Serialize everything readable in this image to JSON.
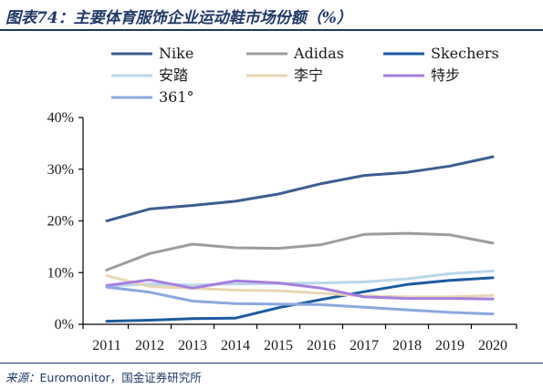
{
  "header": {
    "title": "图表74：主要体育服饰企业运动鞋市场份额（%）"
  },
  "footer": {
    "source_prefix": "来源：",
    "source_text": "Euromonitor，国金证券研究所"
  },
  "chart_data": {
    "type": "line",
    "title": "图表74：主要体育服饰企业运动鞋市场份额（%）",
    "xlabel": "",
    "ylabel": "",
    "x": [
      "2011",
      "2012",
      "2013",
      "2014",
      "2015",
      "2016",
      "2017",
      "2018",
      "2019",
      "2020"
    ],
    "ylim": [
      0,
      40
    ],
    "yticks": [
      "0%",
      "10%",
      "20%",
      "30%",
      "40%"
    ],
    "grid": false,
    "legend": "top",
    "series": [
      {
        "name": "Nike",
        "color": "#3b5e91",
        "values": [
          20.0,
          22.3,
          23.0,
          23.8,
          25.2,
          27.2,
          28.8,
          29.4,
          30.6,
          32.4
        ]
      },
      {
        "name": "Adidas",
        "color": "#9c9c9c",
        "values": [
          10.5,
          13.7,
          15.5,
          14.8,
          14.7,
          15.4,
          17.4,
          17.6,
          17.3,
          15.7
        ]
      },
      {
        "name": "Skechers",
        "color": "#1a5aa0",
        "values": [
          0.6,
          0.8,
          1.1,
          1.2,
          3.2,
          4.8,
          6.3,
          7.7,
          8.5,
          9.0
        ]
      },
      {
        "name": "安踏",
        "color": "#b9d7ea",
        "values": [
          7.4,
          7.8,
          7.6,
          7.8,
          7.9,
          8.0,
          8.2,
          8.8,
          9.8,
          10.3
        ]
      },
      {
        "name": "李宁",
        "color": "#e8d6b2",
        "values": [
          9.4,
          7.3,
          7.0,
          6.6,
          6.5,
          6.0,
          5.5,
          5.3,
          5.3,
          5.6
        ]
      },
      {
        "name": "特步",
        "color": "#a67ee0",
        "values": [
          7.5,
          8.6,
          7.0,
          8.4,
          8.0,
          7.0,
          5.3,
          5.0,
          5.0,
          4.9
        ]
      },
      {
        "name": "361°",
        "color": "#8aa8de",
        "values": [
          7.2,
          6.2,
          4.5,
          4.0,
          3.9,
          3.8,
          3.3,
          2.8,
          2.3,
          2.0
        ]
      }
    ]
  }
}
